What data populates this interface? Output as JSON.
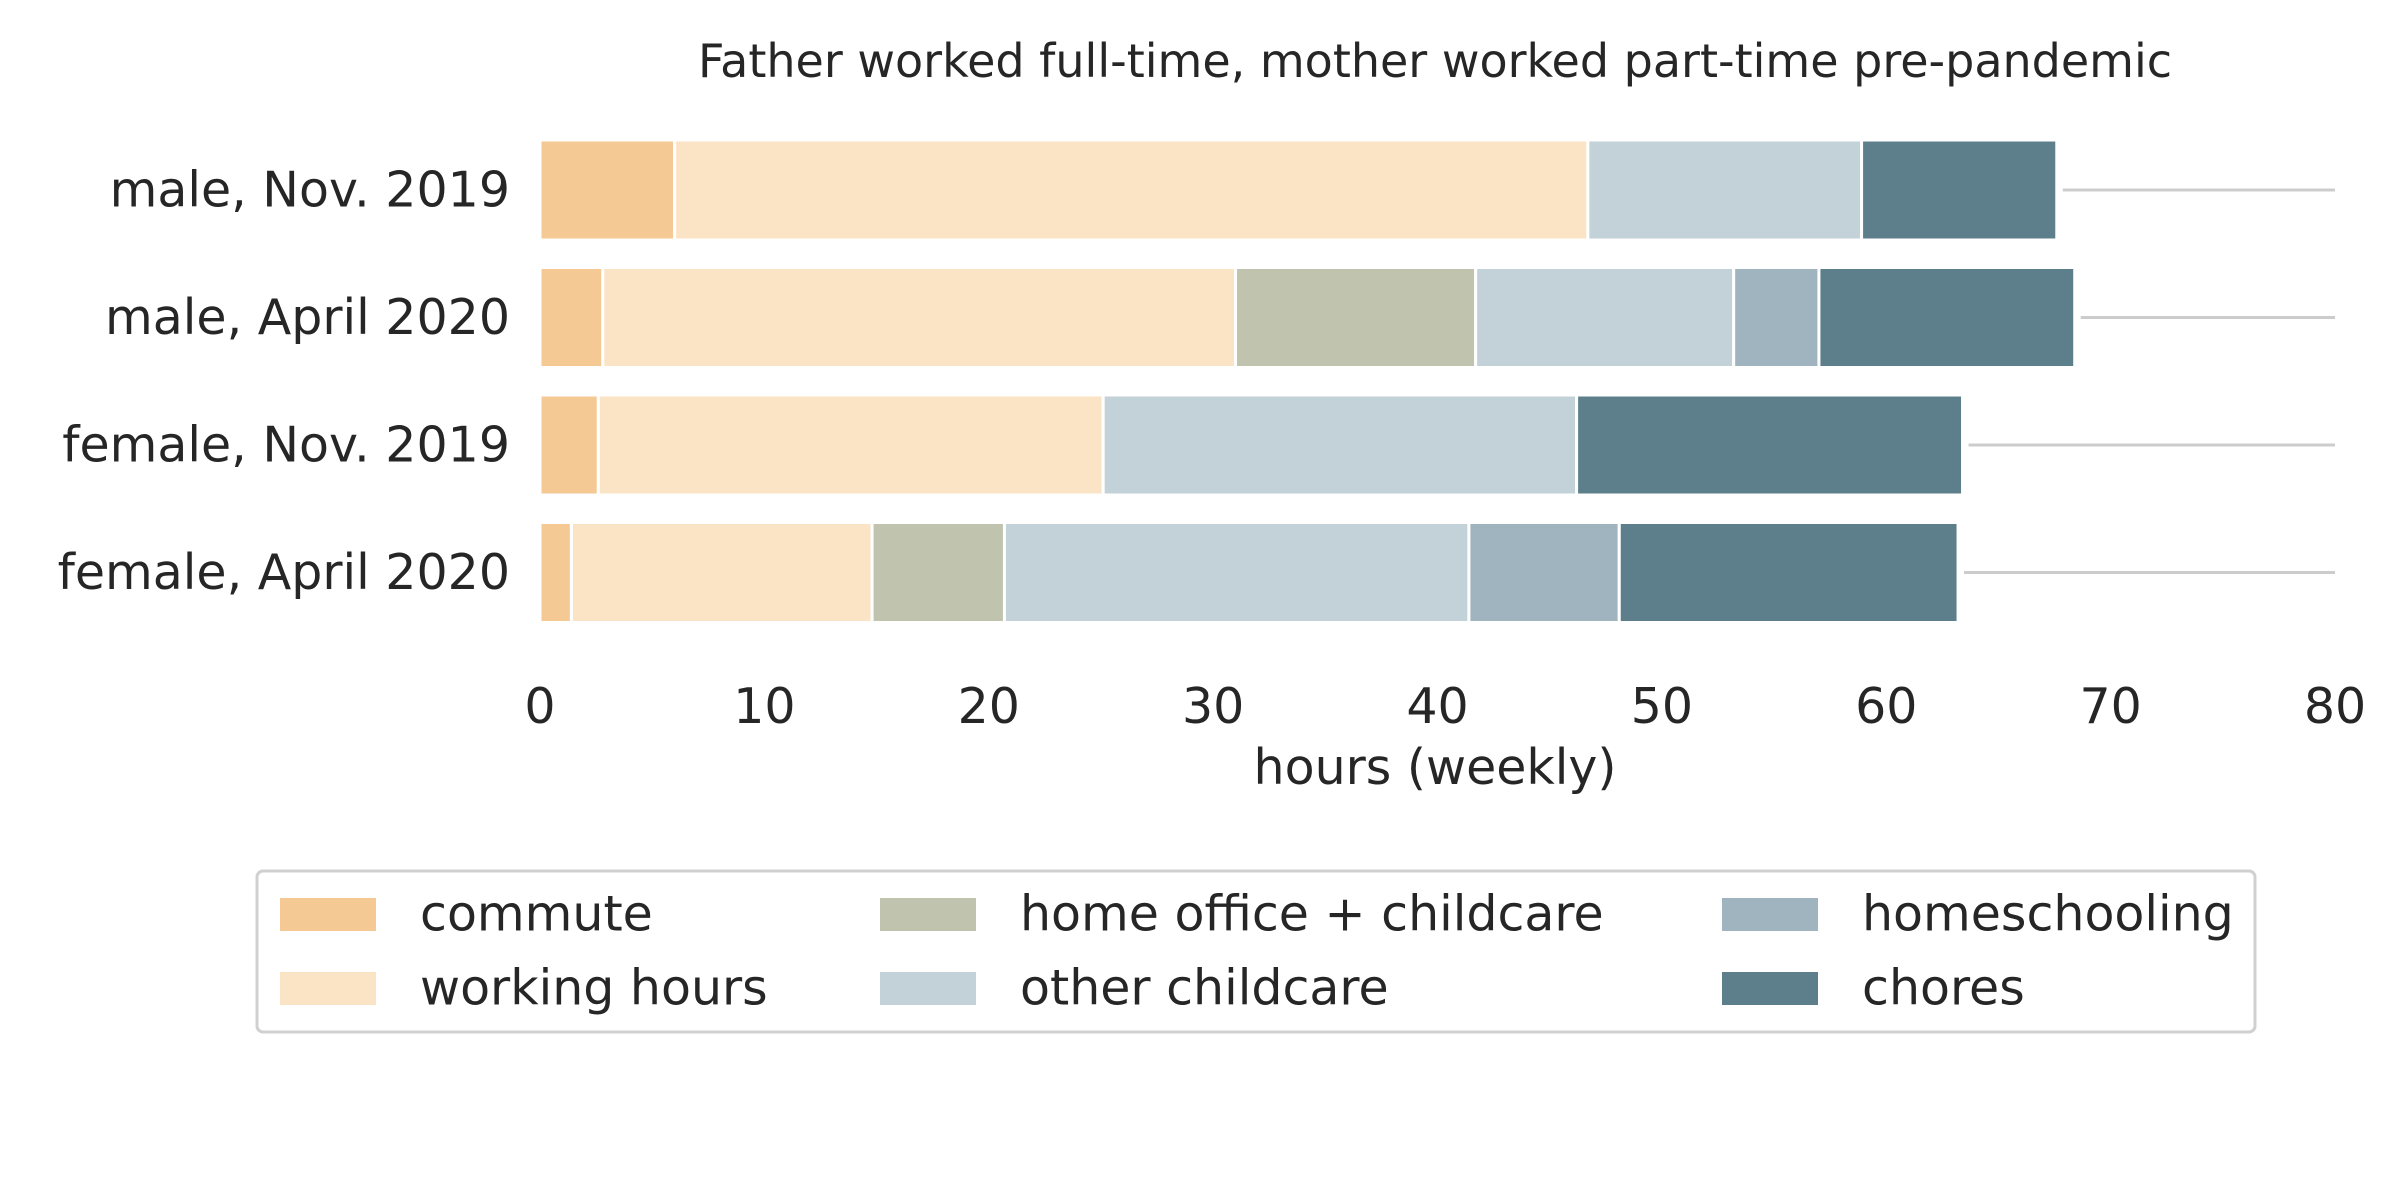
{
  "chart_data": {
    "type": "bar",
    "orientation": "horizontal",
    "stacked": true,
    "title": "Father worked full-time, mother worked part-time pre-pandemic",
    "xlabel": "hours (weekly)",
    "ylabel": "",
    "xlim": [
      0,
      80
    ],
    "xticks": [
      0,
      10,
      20,
      30,
      40,
      50,
      60,
      70,
      80
    ],
    "categories": [
      "male, Nov. 2019",
      "male, April 2020",
      "female, Nov. 2019",
      "female, April 2020"
    ],
    "series": [
      {
        "name": "commute",
        "color": "#f5c993",
        "values": [
          6.0,
          2.8,
          2.6,
          1.4
        ]
      },
      {
        "name": "working hours",
        "color": "#fbe4c6",
        "values": [
          40.7,
          28.2,
          22.5,
          13.4
        ]
      },
      {
        "name": "home office + childcare",
        "color": "#c0c3ad",
        "values": [
          0,
          10.7,
          0,
          5.9
        ]
      },
      {
        "name": "other childcare",
        "color": "#c3d2d9",
        "values": [
          12.2,
          11.5,
          21.1,
          20.7
        ]
      },
      {
        "name": "homeschooling",
        "color": "#a0b4bf",
        "values": [
          0,
          3.8,
          0,
          6.7
        ]
      },
      {
        "name": "chores",
        "color": "#5d7f8c",
        "values": [
          8.7,
          11.4,
          17.2,
          15.1
        ]
      }
    ],
    "grid": "horizontal reference lines",
    "legend": {
      "position": "bottom",
      "columns": 3
    }
  }
}
